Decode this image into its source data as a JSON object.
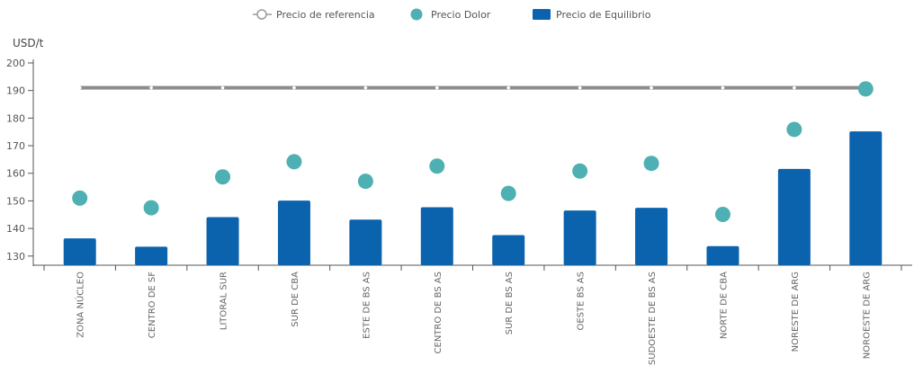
{
  "chart_data": {
    "type": "bar",
    "unit_label": "USD/t",
    "categories": [
      "ZONA NÚCLEO",
      "CENTRO DE SF",
      "LITORAL SUR",
      "SUR DE CBA",
      "ESTE DE BS AS",
      "CENTRO DE BS AS",
      "SUR DE BS AS",
      "OESTE BS AS",
      "SUDOESTE DE BS AS",
      "NORTE DE CBA",
      "NORESTE DE ARG",
      "NOROESTE DE ARG"
    ],
    "series": [
      {
        "name": "Precio de referencia",
        "kind": "line",
        "color": "#8c8c8c",
        "values": [
          191,
          191,
          191,
          191,
          191,
          191,
          191,
          191,
          191,
          191,
          191,
          191
        ]
      },
      {
        "name": "Precio Dolor",
        "kind": "scatter",
        "color": "#4fb0b3",
        "values": [
          151,
          147.5,
          158.7,
          164.2,
          157.1,
          162.6,
          152.7,
          160.8,
          163.6,
          145.1,
          175.9,
          190.6
        ]
      },
      {
        "name": "Precio de Equilibrio",
        "kind": "bar",
        "color": "#0b63ad",
        "values": [
          136.4,
          133.4,
          144.1,
          150.1,
          143.2,
          147.7,
          137.6,
          146.5,
          147.5,
          133.6,
          161.6,
          175.2
        ]
      }
    ],
    "yticks": [
      130,
      140,
      150,
      160,
      170,
      180,
      190,
      200
    ],
    "ylim": [
      127,
      200
    ],
    "grid": false,
    "legend_position": "top-center"
  }
}
